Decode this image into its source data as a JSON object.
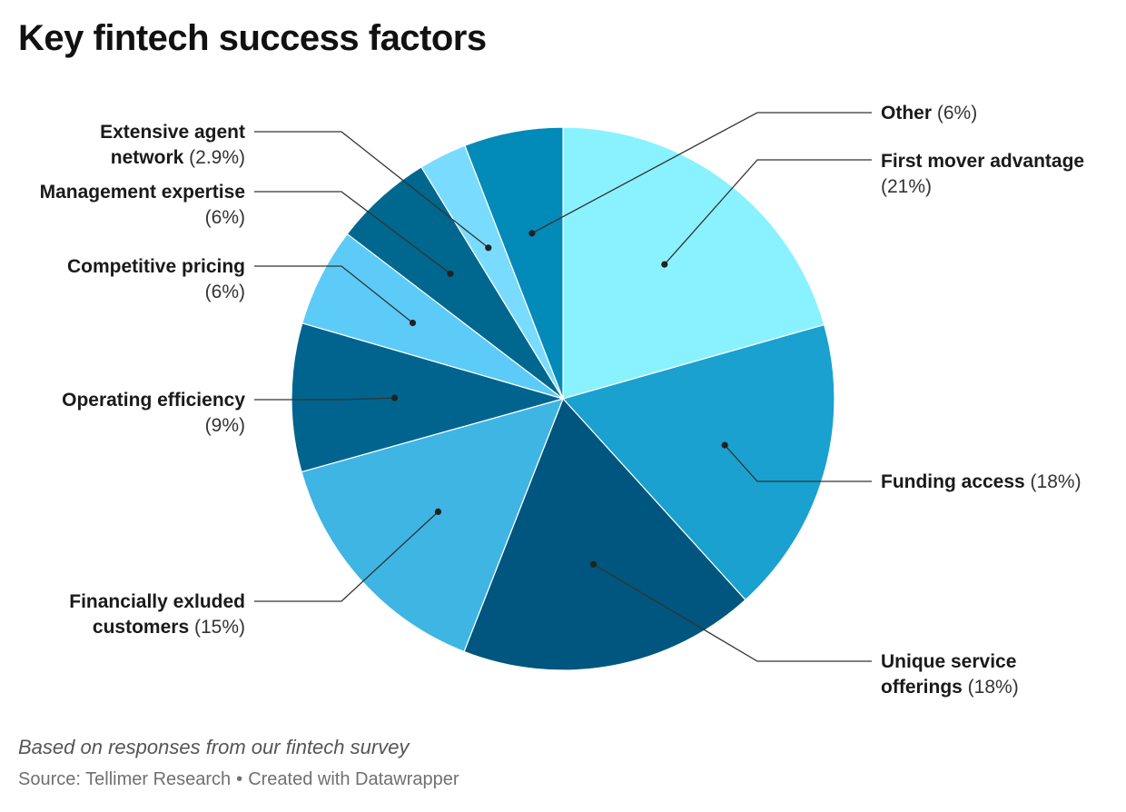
{
  "title": "Key fintech success factors",
  "notes": "Based on responses from our fintech survey",
  "footer": {
    "source": "Source: Tellimer Research",
    "separator": "•",
    "created": "Created with Datawrapper"
  },
  "chart_data": {
    "type": "pie",
    "start_angle_deg": 0,
    "direction": "clockwise",
    "slices": [
      {
        "name": "First mover advantage",
        "value": 21,
        "label": "(21%)",
        "color": "#8af2ff",
        "label_lines": [
          "First mover advantage",
          "(21%)"
        ]
      },
      {
        "name": "Funding access",
        "value": 18,
        "label": "(18%)",
        "color": "#1aa1cf",
        "label_lines": [
          "Funding access (18%)"
        ]
      },
      {
        "name": "Unique service offerings",
        "value": 18,
        "label": "(18%)",
        "color": "#00567e",
        "label_lines": [
          "Unique service",
          "offerings (18%)"
        ]
      },
      {
        "name": "Financially exluded customers",
        "value": 15,
        "label": "(15%)",
        "color": "#3fb5e3",
        "label_lines": [
          "Financially exluded",
          "customers (15%)"
        ]
      },
      {
        "name": "Operating efficiency",
        "value": 9,
        "label": "(9%)",
        "color": "#01648f",
        "label_lines": [
          "Operating efficiency",
          "(9%)"
        ]
      },
      {
        "name": "Competitive pricing",
        "value": 6,
        "label": "(6%)",
        "color": "#5ccbf7",
        "label_lines": [
          "Competitive pricing",
          "(6%)"
        ]
      },
      {
        "name": "Management expertise",
        "value": 6,
        "label": "(6%)",
        "color": "#00678f",
        "label_lines": [
          "Management expertise",
          "(6%)"
        ]
      },
      {
        "name": "Extensive agent network",
        "value": 2.9,
        "label": "(2.9%)",
        "color": "#79dcff",
        "label_lines": [
          "Extensive agent",
          "network (2.9%)"
        ]
      },
      {
        "name": "Other",
        "value": 6,
        "label": "(6%)",
        "color": "#028ab8",
        "label_lines": [
          "Other (6%)"
        ]
      }
    ]
  }
}
